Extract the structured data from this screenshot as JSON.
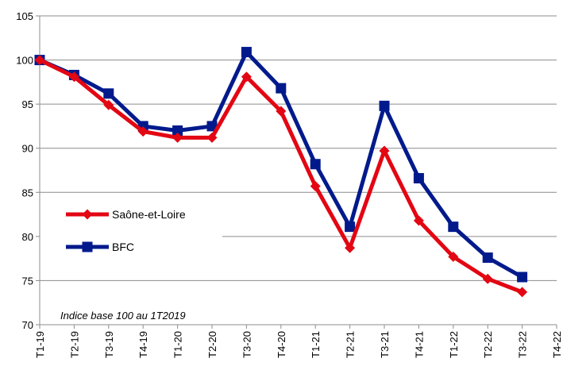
{
  "chart_data": {
    "type": "line",
    "categories": [
      "T1-19",
      "T2-19",
      "T3-19",
      "T4-19",
      "T1-20",
      "T2-20",
      "T3-20",
      "T4-20",
      "T1-21",
      "T2-21",
      "T3-21",
      "T4-21",
      "T1-22",
      "T2-22",
      "T3-22",
      "T4-22"
    ],
    "series": [
      {
        "name": "Saône-et-Loire",
        "color": "#e30613",
        "marker": "diamond",
        "values": [
          100,
          98.1,
          94.9,
          91.9,
          91.2,
          91.2,
          98.1,
          94.2,
          85.7,
          78.7,
          89.7,
          81.8,
          77.7,
          75.2,
          73.7,
          null
        ]
      },
      {
        "name": "BFC",
        "color": "#001a8c",
        "marker": "square",
        "values": [
          100,
          98.3,
          96.2,
          92.5,
          92.0,
          92.5,
          100.9,
          96.8,
          88.2,
          81.1,
          94.8,
          86.6,
          81.1,
          77.6,
          75.4,
          null
        ]
      }
    ],
    "yticks": [
      "70",
      "75",
      "80",
      "85",
      "90",
      "95",
      "100",
      "105"
    ],
    "ylim": [
      70,
      105
    ],
    "grid": true,
    "legend_position": "left-middle",
    "annotation": "Indice base 100 au 1T2019"
  }
}
